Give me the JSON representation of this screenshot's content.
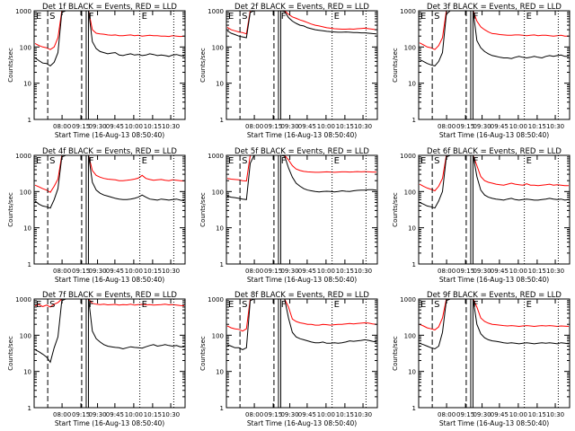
{
  "figure": {
    "ylabel": "Counts/sec",
    "xlabel": "Start Time (16-Aug-13 08:50:40)",
    "y_tick_labels": [
      "1",
      "10",
      "100",
      "1000"
    ],
    "x_tick_labels": [
      "08:00",
      "09:15",
      "09:30",
      "09:45",
      "10:00",
      "10:15",
      "10:30"
    ],
    "marker_labels": [
      "E",
      "S",
      "F",
      "E"
    ],
    "colors": {
      "events": "#000000",
      "lld": "#ff0000",
      "frame": "#000000"
    }
  },
  "chart_data": [
    {
      "type": "line",
      "title": "Det 1f BLACK = Events, RED = LLD",
      "ylim": [
        1,
        1000
      ],
      "ylog": true,
      "series": [
        {
          "key": "events",
          "values": [
            50,
            42,
            36,
            35,
            30,
            38,
            70,
            900,
            1000,
            1000,
            1000,
            1000,
            1000,
            1000,
            1000,
            140,
            90,
            75,
            70,
            65,
            68,
            70,
            60,
            58,
            62,
            65,
            60,
            62,
            58,
            60,
            65,
            62,
            58,
            60,
            58,
            55,
            60,
            62,
            58,
            56
          ]
        },
        {
          "key": "lld",
          "values": [
            125,
            110,
            100,
            95,
            85,
            100,
            180,
            1000,
            1000,
            1000,
            1000,
            1000,
            1000,
            1000,
            1000,
            300,
            240,
            230,
            225,
            215,
            210,
            215,
            205,
            205,
            210,
            215,
            205,
            210,
            200,
            205,
            210,
            205,
            205,
            200,
            200,
            195,
            205,
            200,
            195,
            200
          ]
        }
      ]
    },
    {
      "type": "line",
      "title": "Det 2f BLACK = Events, RED = LLD",
      "ylim": [
        1,
        1000
      ],
      "ylog": true,
      "series": [
        {
          "key": "events",
          "values": [
            280,
            240,
            220,
            200,
            190,
            180,
            900,
            1000,
            1000,
            1000,
            1000,
            1000,
            1000,
            1000,
            1000,
            950,
            650,
            520,
            450,
            400,
            380,
            340,
            320,
            300,
            290,
            280,
            270,
            265,
            260,
            255,
            255,
            260,
            255,
            250,
            250,
            245,
            245,
            240,
            235,
            230
          ]
        },
        {
          "key": "lld",
          "values": [
            350,
            300,
            280,
            260,
            250,
            230,
            1000,
            1000,
            1000,
            1000,
            1000,
            1000,
            1000,
            1000,
            1000,
            1000,
            800,
            680,
            620,
            560,
            520,
            470,
            430,
            400,
            380,
            360,
            340,
            330,
            320,
            315,
            310,
            310,
            315,
            310,
            320,
            325,
            330,
            320,
            310,
            300
          ]
        }
      ]
    },
    {
      "type": "line",
      "title": "Det 3f BLACK = Events, RED = LLD",
      "ylim": [
        1,
        1000
      ],
      "ylog": true,
      "series": [
        {
          "key": "events",
          "values": [
            45,
            40,
            35,
            32,
            30,
            40,
            70,
            800,
            1000,
            1000,
            1000,
            1000,
            1000,
            1000,
            1000,
            150,
            95,
            75,
            65,
            58,
            55,
            52,
            50,
            50,
            48,
            52,
            55,
            52,
            50,
            52,
            55,
            52,
            50,
            55,
            58,
            55,
            58,
            60,
            55,
            55
          ]
        },
        {
          "key": "lld",
          "values": [
            130,
            115,
            100,
            95,
            85,
            110,
            180,
            1000,
            1000,
            1000,
            1000,
            1000,
            1000,
            1000,
            1000,
            520,
            360,
            300,
            260,
            235,
            230,
            220,
            215,
            210,
            210,
            215,
            215,
            210,
            205,
            210,
            215,
            205,
            210,
            210,
            205,
            200,
            205,
            210,
            200,
            200
          ]
        }
      ]
    },
    {
      "type": "line",
      "title": "Det 4f BLACK = Events, RED = LLD",
      "ylim": [
        1,
        1000
      ],
      "ylog": true,
      "series": [
        {
          "key": "events",
          "values": [
            55,
            45,
            40,
            38,
            35,
            60,
            120,
            900,
            1000,
            1000,
            1000,
            1000,
            1000,
            1000,
            1000,
            180,
            110,
            90,
            80,
            75,
            70,
            65,
            62,
            60,
            60,
            62,
            65,
            70,
            80,
            70,
            62,
            60,
            58,
            62,
            60,
            58,
            60,
            62,
            58,
            56
          ]
        },
        {
          "key": "lld",
          "values": [
            150,
            135,
            120,
            110,
            95,
            140,
            220,
            1000,
            1000,
            1000,
            1000,
            1000,
            1000,
            1000,
            1000,
            380,
            280,
            250,
            230,
            220,
            215,
            210,
            200,
            200,
            205,
            210,
            220,
            235,
            280,
            230,
            215,
            205,
            210,
            215,
            205,
            200,
            210,
            205,
            200,
            195
          ]
        }
      ]
    },
    {
      "type": "line",
      "title": "Det 5f BLACK = Events, RED = LLD",
      "ylim": [
        1,
        1000
      ],
      "ylog": true,
      "series": [
        {
          "key": "events",
          "values": [
            75,
            70,
            68,
            65,
            62,
            60,
            600,
            1000,
            1000,
            1000,
            1000,
            1000,
            1000,
            1000,
            1000,
            950,
            450,
            250,
            170,
            140,
            120,
            110,
            105,
            100,
            98,
            100,
            102,
            100,
            98,
            100,
            105,
            102,
            100,
            105,
            108,
            110,
            110,
            112,
            112,
            110
          ]
        },
        {
          "key": "lld",
          "values": [
            230,
            220,
            215,
            210,
            200,
            195,
            1000,
            1000,
            1000,
            1000,
            1000,
            1000,
            1000,
            1000,
            1000,
            1000,
            750,
            520,
            420,
            380,
            360,
            350,
            345,
            340,
            340,
            345,
            350,
            345,
            340,
            345,
            350,
            350,
            345,
            350,
            355,
            350,
            355,
            350,
            345,
            345
          ]
        }
      ]
    },
    {
      "type": "line",
      "title": "Det 6f BLACK = Events, RED = LLD",
      "ylim": [
        1,
        1000
      ],
      "ylog": true,
      "series": [
        {
          "key": "events",
          "values": [
            50,
            45,
            40,
            38,
            35,
            55,
            100,
            900,
            1000,
            1000,
            1000,
            1000,
            1000,
            1000,
            1000,
            260,
            110,
            80,
            70,
            65,
            62,
            60,
            58,
            62,
            65,
            60,
            58,
            60,
            62,
            60,
            58,
            58,
            60,
            62,
            65,
            62,
            60,
            62,
            58,
            60
          ]
        },
        {
          "key": "lld",
          "values": [
            160,
            140,
            125,
            115,
            105,
            140,
            230,
            1000,
            1000,
            1000,
            1000,
            1000,
            1000,
            1000,
            1000,
            520,
            260,
            200,
            180,
            170,
            160,
            155,
            150,
            160,
            170,
            160,
            155,
            150,
            165,
            150,
            150,
            145,
            150,
            155,
            160,
            150,
            155,
            150,
            145,
            145
          ]
        }
      ]
    },
    {
      "type": "line",
      "title": "Det 7f BLACK = Events, RED = LLD",
      "ylim": [
        1,
        1000
      ],
      "ylog": true,
      "series": [
        {
          "key": "events",
          "values": [
            40,
            35,
            30,
            25,
            18,
            45,
            90,
            900,
            1000,
            1000,
            1000,
            1000,
            1000,
            1000,
            1000,
            130,
            80,
            65,
            55,
            50,
            48,
            46,
            45,
            42,
            45,
            48,
            46,
            45,
            44,
            48,
            52,
            55,
            50,
            52,
            55,
            52,
            50,
            52,
            48,
            48
          ]
        },
        {
          "key": "lld",
          "values": [
            650,
            700,
            620,
            680,
            600,
            720,
            800,
            1000,
            1000,
            1000,
            1000,
            1000,
            1000,
            1000,
            1000,
            760,
            720,
            700,
            720,
            690,
            700,
            710,
            680,
            700,
            690,
            720,
            680,
            700,
            710,
            690,
            700,
            680,
            690,
            700,
            720,
            690,
            700,
            680,
            660,
            650
          ]
        }
      ]
    },
    {
      "type": "line",
      "title": "Det 8f BLACK = Events, RED = LLD",
      "ylim": [
        1,
        1000
      ],
      "ylog": true,
      "series": [
        {
          "key": "events",
          "values": [
            55,
            50,
            45,
            45,
            40,
            45,
            900,
            1000,
            1000,
            1000,
            1000,
            1000,
            1000,
            1000,
            1000,
            1000,
            300,
            120,
            90,
            80,
            75,
            70,
            65,
            62,
            62,
            65,
            60,
            60,
            62,
            60,
            62,
            65,
            70,
            68,
            70,
            72,
            75,
            72,
            68,
            65
          ]
        },
        {
          "key": "lld",
          "values": [
            180,
            160,
            150,
            145,
            130,
            150,
            1000,
            1000,
            1000,
            1000,
            1000,
            1000,
            1000,
            1000,
            1000,
            1000,
            600,
            280,
            240,
            220,
            210,
            200,
            200,
            190,
            190,
            200,
            195,
            190,
            195,
            200,
            200,
            205,
            210,
            205,
            210,
            215,
            220,
            215,
            205,
            200
          ]
        }
      ]
    },
    {
      "type": "line",
      "title": "Det 9f BLACK = Events, RED = LLD",
      "ylim": [
        1,
        1000
      ],
      "ylog": true,
      "series": [
        {
          "key": "events",
          "values": [
            60,
            55,
            50,
            45,
            42,
            50,
            120,
            900,
            1000,
            1000,
            1000,
            1000,
            1000,
            1000,
            1000,
            200,
            110,
            85,
            75,
            70,
            68,
            65,
            62,
            60,
            62,
            60,
            58,
            60,
            62,
            60,
            58,
            60,
            62,
            60,
            62,
            60,
            58,
            62,
            60,
            58
          ]
        },
        {
          "key": "lld",
          "values": [
            200,
            180,
            160,
            150,
            140,
            170,
            300,
            1000,
            1000,
            1000,
            1000,
            1000,
            1000,
            1000,
            1000,
            600,
            300,
            240,
            215,
            200,
            195,
            190,
            185,
            180,
            185,
            180,
            175,
            180,
            185,
            180,
            175,
            180,
            185,
            180,
            185,
            180,
            175,
            180,
            178,
            175
          ]
        }
      ]
    }
  ]
}
